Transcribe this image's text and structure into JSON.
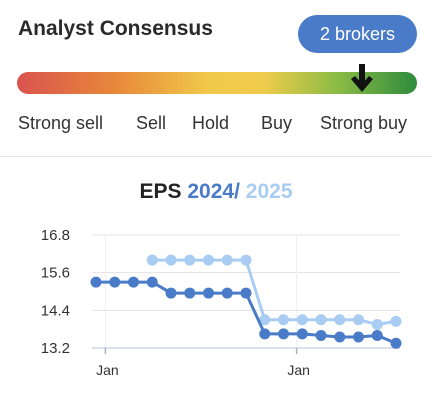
{
  "header": {
    "title": "Analyst Consensus",
    "brokers_badge": "2 brokers"
  },
  "rating_scale": {
    "labels": [
      "Strong sell",
      "Sell",
      "Hold",
      "Buy",
      "Strong buy"
    ],
    "current": "Strong buy",
    "marker_position": 0.865,
    "arrow_icon": "down-arrow-icon"
  },
  "eps": {
    "label": "EPS",
    "year_a": "2024",
    "separator": "/",
    "year_b": "2025",
    "color_a": "#4a7bc8",
    "color_b": "#a9cdf2"
  },
  "chart_data": {
    "type": "line",
    "yticks": [
      "16.8",
      "15.6",
      "14.4",
      "13.2"
    ],
    "ytick_values": [
      16.8,
      15.6,
      14.4,
      13.2
    ],
    "ylim": [
      13.2,
      16.8
    ],
    "xticks": [
      "Jan",
      "Jan"
    ],
    "xtick_index": [
      0.5,
      10.7
    ],
    "series": [
      {
        "name": "2024",
        "color": "#4a7bc8",
        "x": [
          0,
          1,
          2,
          3,
          4,
          5,
          6,
          7,
          8,
          9,
          10,
          11,
          12,
          13,
          14,
          15,
          16
        ],
        "values": [
          15.3,
          15.3,
          15.3,
          15.3,
          14.95,
          14.95,
          14.95,
          14.95,
          14.95,
          13.65,
          13.65,
          13.65,
          13.6,
          13.55,
          13.55,
          13.6,
          13.35
        ]
      },
      {
        "name": "2025",
        "color": "#a9cdf2",
        "x": [
          3,
          4,
          5,
          6,
          7,
          8,
          9,
          10,
          11,
          12,
          13,
          14,
          15,
          16
        ],
        "values": [
          16.0,
          16.0,
          16.0,
          16.0,
          16.0,
          16.0,
          14.1,
          14.1,
          14.1,
          14.1,
          14.1,
          14.1,
          13.95,
          14.05
        ]
      }
    ],
    "grid": true
  }
}
